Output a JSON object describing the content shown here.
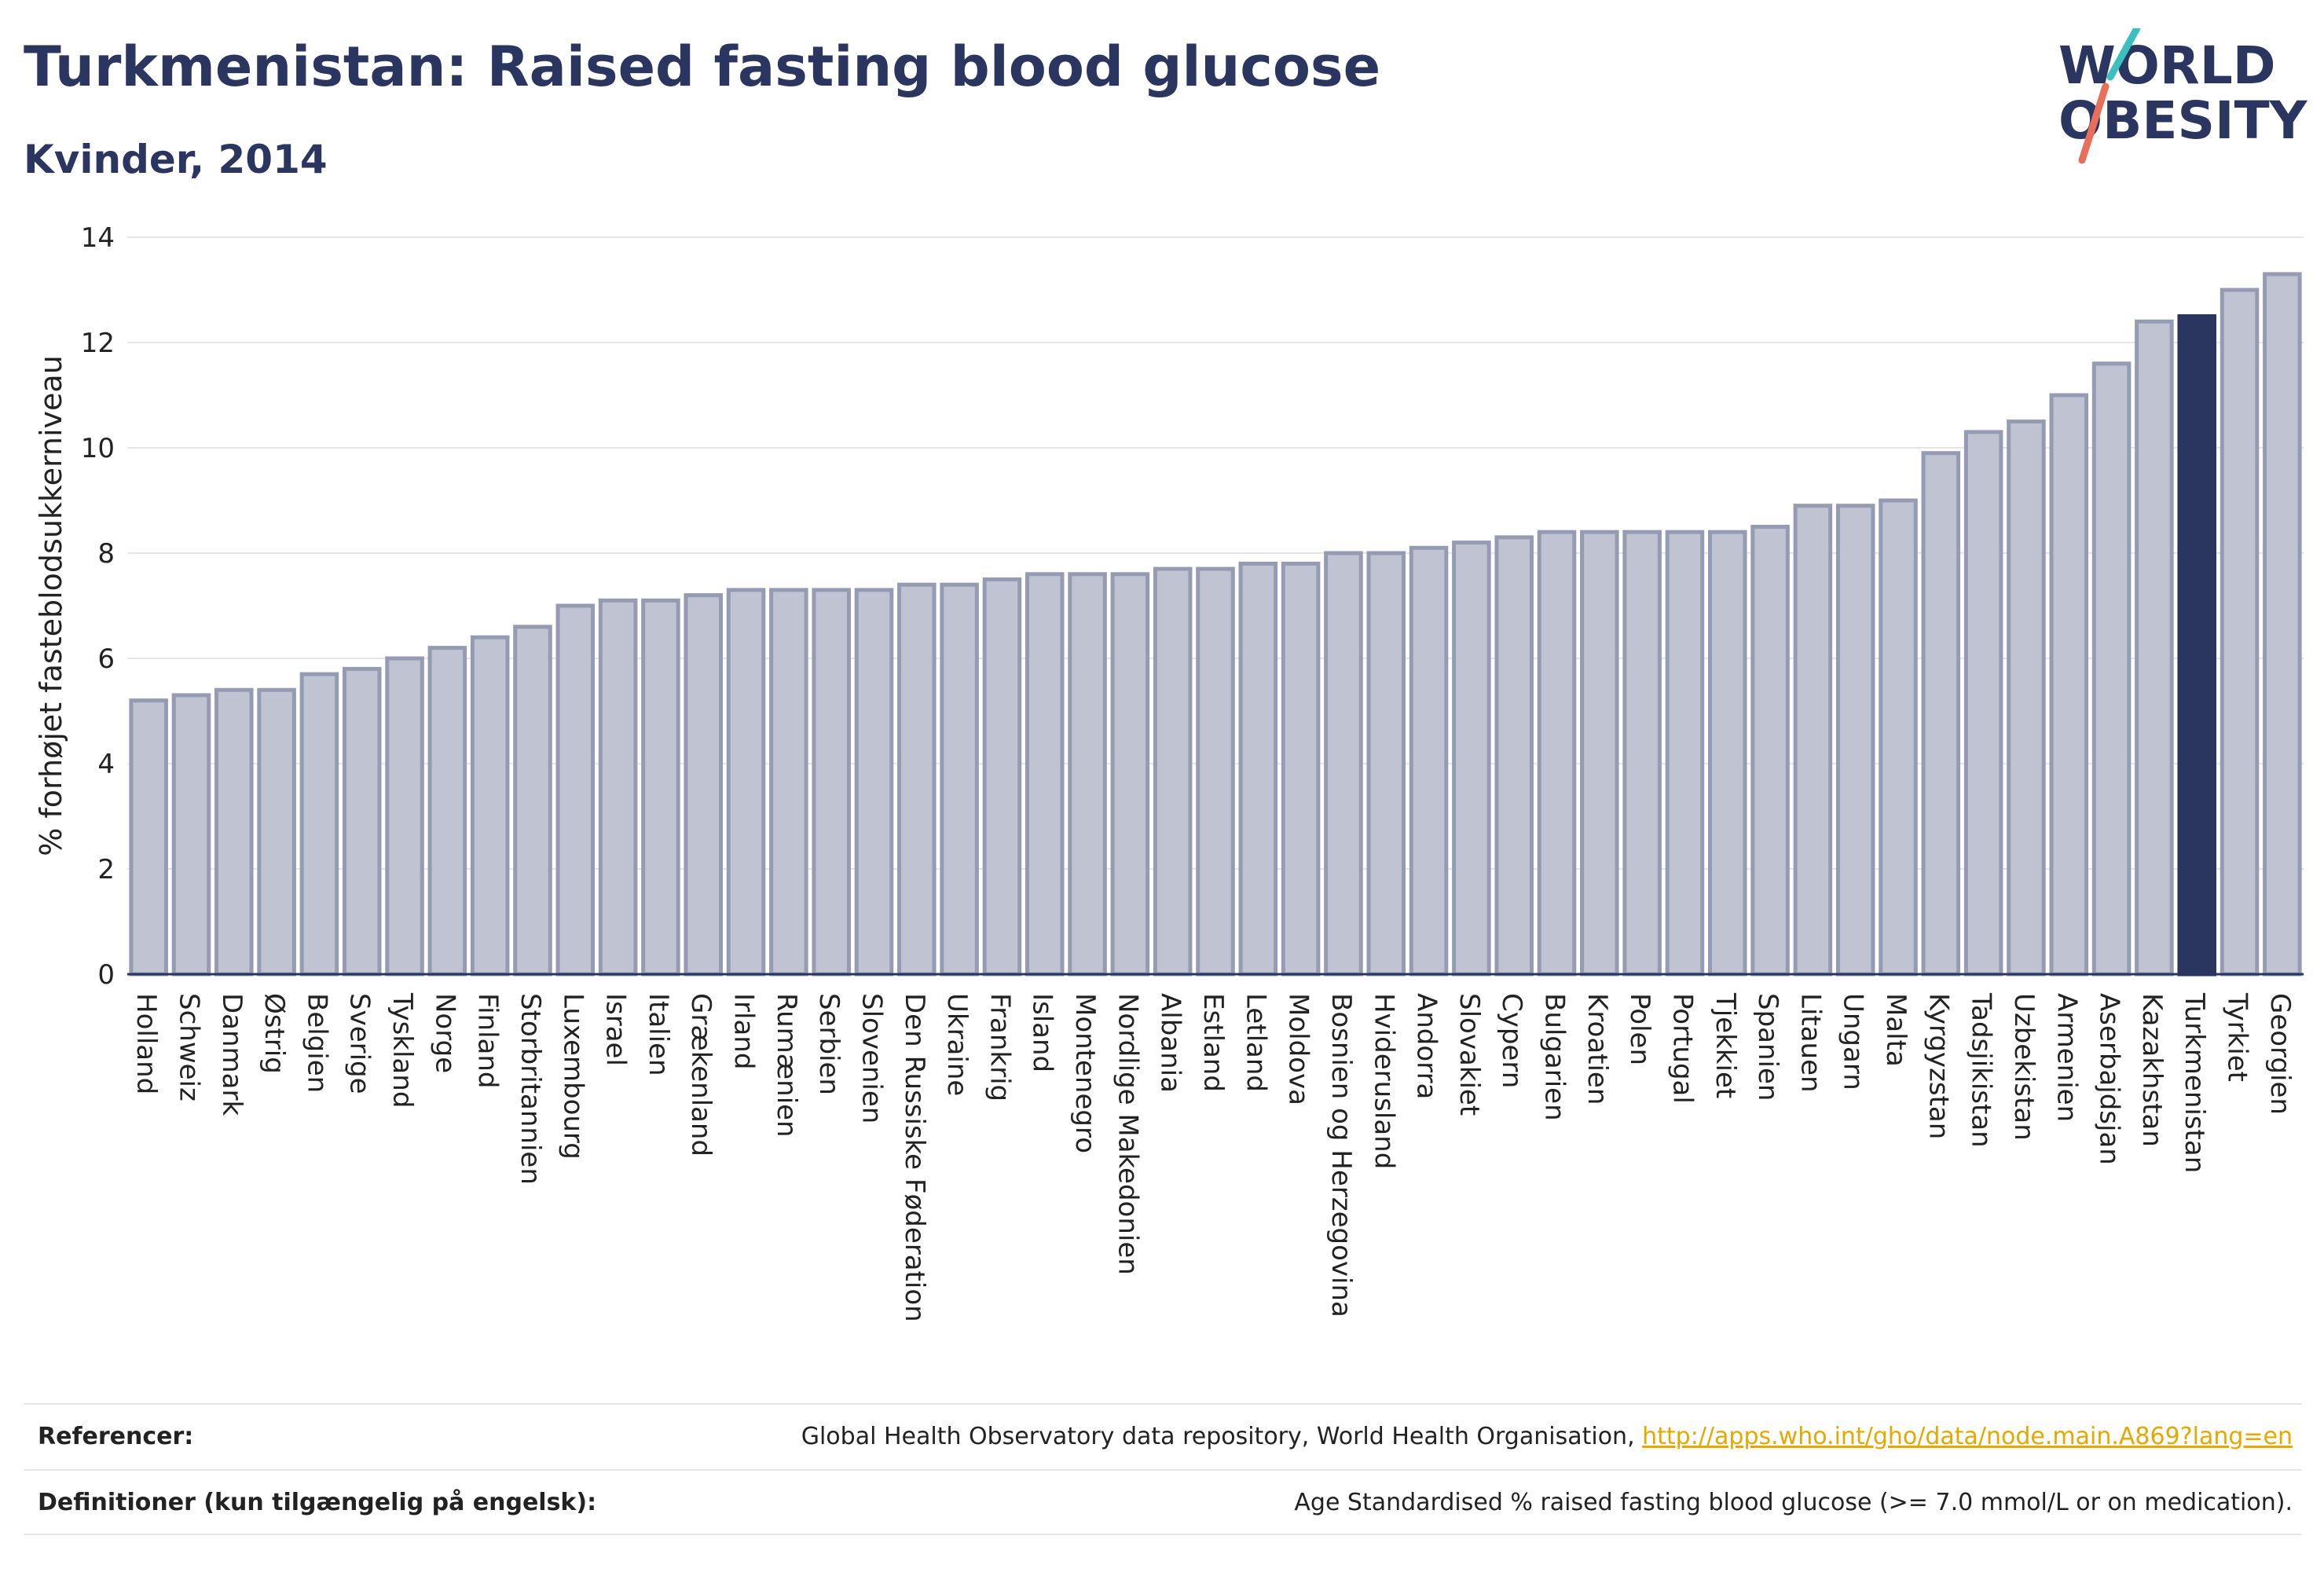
{
  "header": {
    "title": "Turkmenistan: Raised fasting blood glucose",
    "subtitle": "Kvinder, 2014",
    "logo_line1": "WORLD",
    "logo_line2": "OBESITY"
  },
  "chart_data": {
    "type": "bar",
    "title": "Turkmenistan: Raised fasting blood glucose",
    "subtitle": "Kvinder, 2014",
    "xlabel": "",
    "ylabel": "% forhøjet fasteblodsukkerniveau",
    "ylim": [
      0,
      14
    ],
    "yticks": [
      0,
      2,
      4,
      6,
      8,
      10,
      12,
      14
    ],
    "grid": true,
    "highlight": "Turkmenistan",
    "colors": {
      "bar": "#bfc3d2",
      "bar_edge": "#949bb3",
      "highlight": "#2a3560",
      "grid": "#e6e6e6"
    },
    "categories": [
      "Holland",
      "Schweiz",
      "Danmark",
      "Østrig",
      "Belgien",
      "Sverige",
      "Tyskland",
      "Norge",
      "Finland",
      "Storbritannien",
      "Luxembourg",
      "Israel",
      "Italien",
      "Grækenland",
      "Irland",
      "Rumænien",
      "Serbien",
      "Slovenien",
      "Den Russiske Føderation",
      "Ukraine",
      "Frankrig",
      "Island",
      "Montenegro",
      "Nordlige Makedonien",
      "Albania",
      "Estland",
      "Letland",
      "Moldova",
      "Bosnien og Herzegovina",
      "Hviderusland",
      "Andorra",
      "Slovakiet",
      "Cypern",
      "Bulgarien",
      "Kroatien",
      "Polen",
      "Portugal",
      "Tjekkiet",
      "Spanien",
      "Litauen",
      "Ungarn",
      "Malta",
      "Kyrgyzstan",
      "Tadsjikistan",
      "Uzbekistan",
      "Armenien",
      "Aserbajdsjan",
      "Kazakhstan",
      "Turkmenistan",
      "Tyrkiet",
      "Georgien"
    ],
    "values": [
      5.2,
      5.3,
      5.4,
      5.4,
      5.7,
      5.8,
      6.0,
      6.2,
      6.4,
      6.6,
      7.0,
      7.1,
      7.1,
      7.2,
      7.3,
      7.3,
      7.3,
      7.3,
      7.4,
      7.4,
      7.5,
      7.6,
      7.6,
      7.6,
      7.7,
      7.7,
      7.8,
      7.8,
      8.0,
      8.0,
      8.1,
      8.2,
      8.3,
      8.4,
      8.4,
      8.4,
      8.4,
      8.4,
      8.5,
      8.9,
      8.9,
      9.0,
      9.9,
      10.3,
      10.5,
      11.0,
      11.6,
      12.4,
      12.5,
      13.0,
      13.3
    ]
  },
  "footer": {
    "references_label": "Referencer:",
    "references_text": "Global Health Observatory data repository, World Health Organisation, ",
    "references_link": "http://apps.who.int/gho/data/node.main.A869?lang=en",
    "definitions_label": "Definitioner (kun tilgængelig på engelsk):",
    "definitions_text": "Age Standardised % raised fasting blood glucose (>= 7.0 mmol/L or on medication)."
  }
}
